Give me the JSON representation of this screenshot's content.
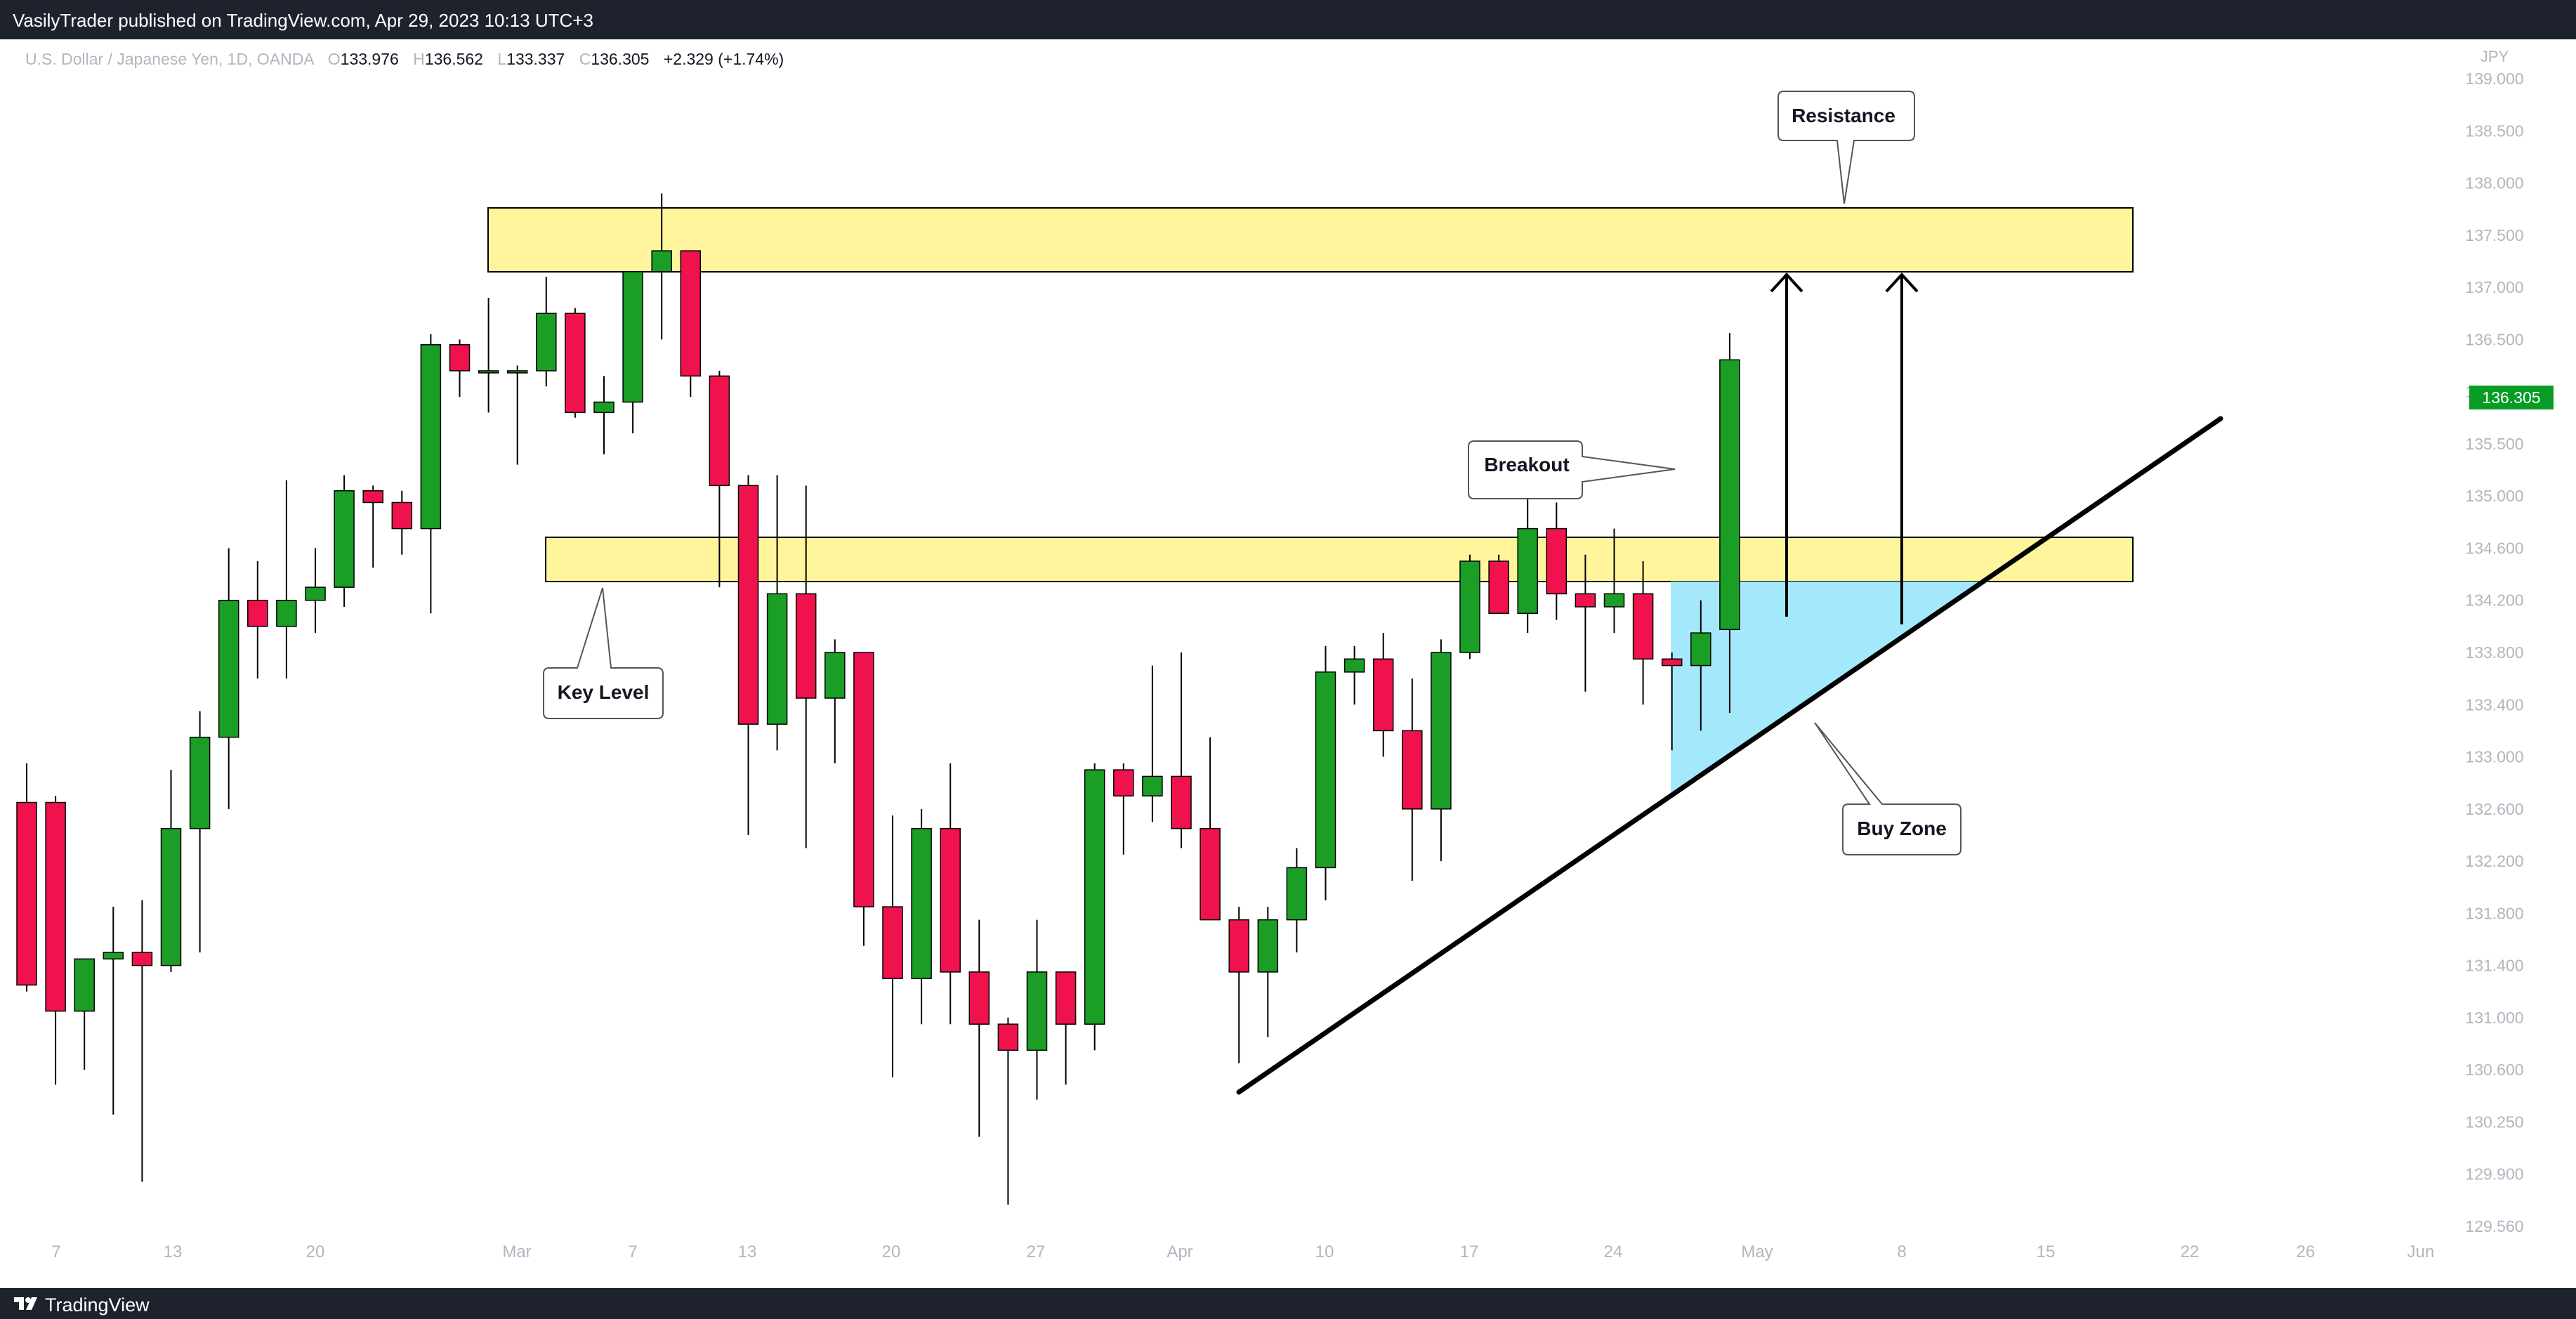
{
  "header": {
    "publisher_text": "VasilyTrader published on TradingView.com, Apr 29, 2023 10:13 UTC+3"
  },
  "footer": {
    "brand": "TradingView"
  },
  "legend": {
    "symbol": "U.S. Dollar / Japanese Yen, 1D, OANDA",
    "o_label": "O",
    "o_value": "133.976",
    "h_label": "H",
    "h_value": "136.562",
    "l_label": "L",
    "l_value": "133.337",
    "c_label": "C",
    "c_value": "136.305",
    "change": "+2.329 (+1.74%)"
  },
  "colors": {
    "up": "#1a9e25",
    "down": "#f0124c",
    "zone": "#fff59d",
    "buy_zone": "#a3e9fb",
    "price_tag": "#089c26",
    "axis_text": "#b2b5be"
  },
  "chart_data": {
    "type": "candlestick",
    "title": "U.S. Dollar / Japanese Yen, 1D, OANDA",
    "currency": "JPY",
    "last_price": "136.305",
    "grid": false,
    "y_ticks": [
      "139.000",
      "138.500",
      "138.000",
      "137.500",
      "137.000",
      "136.500",
      "136.000",
      "135.500",
      "135.000",
      "134.600",
      "134.200",
      "133.800",
      "133.400",
      "133.000",
      "132.600",
      "132.200",
      "131.800",
      "131.400",
      "131.000",
      "130.600",
      "130.250",
      "129.900",
      "129.560"
    ],
    "x_ticks": [
      "7",
      "13",
      "20",
      "Mar",
      "7",
      "13",
      "20",
      "27",
      "Apr",
      "10",
      "17",
      "24",
      "May",
      "8",
      "15",
      "22",
      "26",
      "Jun"
    ],
    "candles": [
      {
        "d": "Feb 6",
        "o": 132.65,
        "h": 132.95,
        "l": 131.2,
        "c": 131.25
      },
      {
        "d": "Feb 7",
        "o": 132.65,
        "h": 132.7,
        "l": 130.5,
        "c": 131.05
      },
      {
        "d": "Feb 8",
        "o": 131.05,
        "h": 131.45,
        "l": 130.6,
        "c": 131.45
      },
      {
        "d": "Feb 9",
        "o": 131.45,
        "h": 131.85,
        "l": 130.3,
        "c": 131.5
      },
      {
        "d": "Feb 10",
        "o": 131.5,
        "h": 131.9,
        "l": 129.85,
        "c": 131.4
      },
      {
        "d": "Feb 13",
        "o": 131.4,
        "h": 132.9,
        "l": 131.35,
        "c": 132.45
      },
      {
        "d": "Feb 14",
        "o": 132.45,
        "h": 133.35,
        "l": 131.5,
        "c": 133.15
      },
      {
        "d": "Feb 15",
        "o": 133.15,
        "h": 134.6,
        "l": 132.6,
        "c": 134.2
      },
      {
        "d": "Feb 16",
        "o": 134.2,
        "h": 134.5,
        "l": 133.6,
        "c": 134.0
      },
      {
        "d": "Feb 17",
        "o": 134.0,
        "h": 135.15,
        "l": 133.6,
        "c": 134.2
      },
      {
        "d": "Feb 20",
        "o": 134.2,
        "h": 134.6,
        "l": 133.95,
        "c": 134.3
      },
      {
        "d": "Feb 21",
        "o": 134.3,
        "h": 135.2,
        "l": 134.15,
        "c": 135.05
      },
      {
        "d": "Feb 22",
        "o": 135.05,
        "h": 135.1,
        "l": 134.45,
        "c": 134.95
      },
      {
        "d": "Feb 23",
        "o": 134.95,
        "h": 135.05,
        "l": 134.55,
        "c": 134.75
      },
      {
        "d": "Feb 24",
        "o": 134.75,
        "h": 136.55,
        "l": 134.1,
        "c": 136.45
      },
      {
        "d": "Feb 27",
        "o": 136.45,
        "h": 136.5,
        "l": 135.95,
        "c": 136.2
      },
      {
        "d": "Feb 28",
        "o": 136.2,
        "h": 136.9,
        "l": 135.8,
        "c": 136.2
      },
      {
        "d": "Mar 1",
        "o": 136.2,
        "h": 136.25,
        "l": 135.3,
        "c": 136.2
      },
      {
        "d": "Mar 2",
        "o": 136.2,
        "h": 137.1,
        "l": 136.05,
        "c": 136.75
      },
      {
        "d": "Mar 3",
        "o": 136.75,
        "h": 136.8,
        "l": 135.75,
        "c": 135.8
      },
      {
        "d": "Mar 6",
        "o": 135.8,
        "h": 136.15,
        "l": 135.4,
        "c": 135.9
      },
      {
        "d": "Mar 7",
        "o": 135.9,
        "h": 137.15,
        "l": 135.6,
        "c": 137.15
      },
      {
        "d": "Mar 8",
        "o": 137.15,
        "h": 137.9,
        "l": 136.5,
        "c": 137.35
      },
      {
        "d": "Mar 9",
        "o": 137.35,
        "h": 137.35,
        "l": 135.95,
        "c": 136.15
      },
      {
        "d": "Mar 10",
        "o": 136.15,
        "h": 136.2,
        "l": 134.3,
        "c": 135.1
      },
      {
        "d": "Mar 13",
        "o": 135.1,
        "h": 135.2,
        "l": 132.4,
        "c": 133.25
      },
      {
        "d": "Mar 14",
        "o": 133.25,
        "h": 135.2,
        "l": 133.05,
        "c": 134.25
      },
      {
        "d": "Mar 15",
        "o": 134.25,
        "h": 135.1,
        "l": 132.3,
        "c": 133.45
      },
      {
        "d": "Mar 16",
        "o": 133.45,
        "h": 133.9,
        "l": 132.95,
        "c": 133.8
      },
      {
        "d": "Mar 17",
        "o": 133.8,
        "h": 133.8,
        "l": 131.55,
        "c": 131.85
      },
      {
        "d": "Mar 20",
        "o": 131.85,
        "h": 132.55,
        "l": 130.55,
        "c": 131.3
      },
      {
        "d": "Mar 21",
        "o": 131.3,
        "h": 132.6,
        "l": 130.95,
        "c": 132.45
      },
      {
        "d": "Mar 22",
        "o": 132.45,
        "h": 132.95,
        "l": 130.95,
        "c": 131.35
      },
      {
        "d": "Mar 23",
        "o": 131.35,
        "h": 131.75,
        "l": 130.15,
        "c": 130.95
      },
      {
        "d": "Mar 24",
        "o": 130.95,
        "h": 131.0,
        "l": 129.7,
        "c": 130.75
      },
      {
        "d": "Mar 27",
        "o": 130.75,
        "h": 131.75,
        "l": 130.4,
        "c": 131.35
      },
      {
        "d": "Mar 28",
        "o": 131.35,
        "h": 131.35,
        "l": 130.5,
        "c": 130.95
      },
      {
        "d": "Mar 29",
        "o": 130.95,
        "h": 132.95,
        "l": 130.75,
        "c": 132.9
      },
      {
        "d": "Mar 30",
        "o": 132.9,
        "h": 132.95,
        "l": 132.25,
        "c": 132.7
      },
      {
        "d": "Mar 31",
        "o": 132.7,
        "h": 133.7,
        "l": 132.5,
        "c": 132.85
      },
      {
        "d": "Apr 3",
        "o": 132.85,
        "h": 133.8,
        "l": 132.3,
        "c": 132.45
      },
      {
        "d": "Apr 4",
        "o": 132.45,
        "h": 133.15,
        "l": 131.75,
        "c": 131.75
      },
      {
        "d": "Apr 5",
        "o": 131.75,
        "h": 131.85,
        "l": 130.65,
        "c": 131.35
      },
      {
        "d": "Apr 6",
        "o": 131.35,
        "h": 131.85,
        "l": 130.85,
        "c": 131.75
      },
      {
        "d": "Apr 7",
        "o": 131.75,
        "h": 132.3,
        "l": 131.5,
        "c": 132.15
      },
      {
        "d": "Apr 10",
        "o": 132.15,
        "h": 133.85,
        "l": 131.9,
        "c": 133.65
      },
      {
        "d": "Apr 11",
        "o": 133.65,
        "h": 133.85,
        "l": 133.4,
        "c": 133.75
      },
      {
        "d": "Apr 12",
        "o": 133.75,
        "h": 133.95,
        "l": 133.0,
        "c": 133.2
      },
      {
        "d": "Apr 13",
        "o": 133.2,
        "h": 133.6,
        "l": 132.05,
        "c": 132.6
      },
      {
        "d": "Apr 14",
        "o": 132.6,
        "h": 133.9,
        "l": 132.2,
        "c": 133.8
      },
      {
        "d": "Apr 17",
        "o": 133.8,
        "h": 134.55,
        "l": 133.75,
        "c": 134.5
      },
      {
        "d": "Apr 18",
        "o": 134.5,
        "h": 134.55,
        "l": 134.1,
        "c": 134.1
      },
      {
        "d": "Apr 19",
        "o": 134.1,
        "h": 135.05,
        "l": 133.95,
        "c": 134.75
      },
      {
        "d": "Apr 20",
        "o": 134.75,
        "h": 134.95,
        "l": 134.05,
        "c": 134.25
      },
      {
        "d": "Apr 21",
        "o": 134.25,
        "h": 134.55,
        "l": 133.5,
        "c": 134.15
      },
      {
        "d": "Apr 24",
        "o": 134.15,
        "h": 134.75,
        "l": 133.95,
        "c": 134.25
      },
      {
        "d": "Apr 25",
        "o": 134.25,
        "h": 134.5,
        "l": 133.4,
        "c": 133.75
      },
      {
        "d": "Apr 26",
        "o": 133.75,
        "h": 133.8,
        "l": 133.05,
        "c": 133.7
      },
      {
        "d": "Apr 27",
        "o": 133.7,
        "h": 134.2,
        "l": 133.2,
        "c": 133.95
      },
      {
        "d": "Apr 28",
        "o": 133.976,
        "h": 136.562,
        "l": 133.337,
        "c": 136.305
      }
    ]
  },
  "annotations": {
    "resistance": "Resistance",
    "breakout": "Breakout",
    "key_level": "Key Level",
    "buy_zone": "Buy Zone"
  }
}
